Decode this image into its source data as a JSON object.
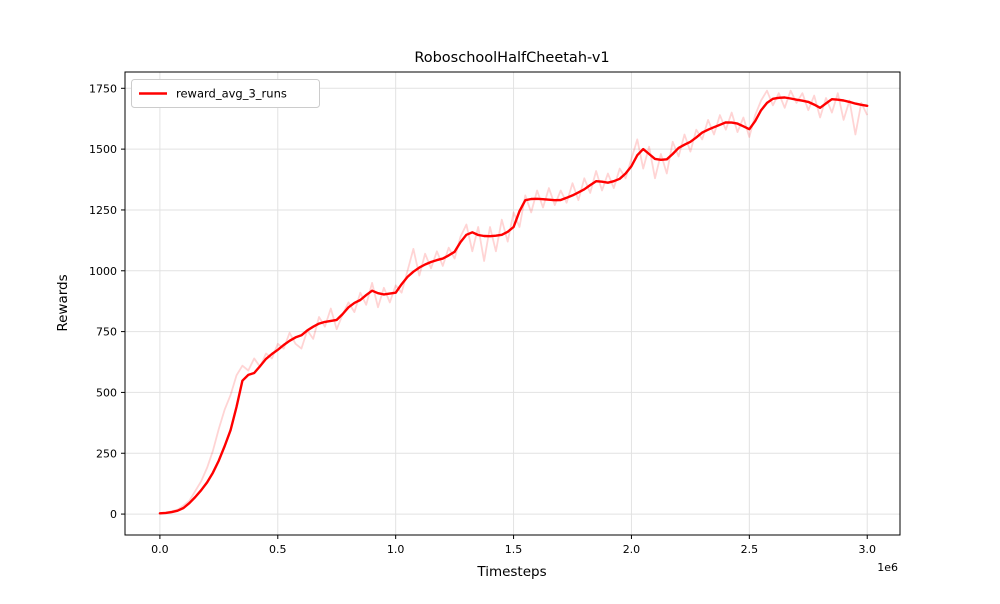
{
  "colors": {
    "line": "#ff0000",
    "raw_line": "#ff0000",
    "raw_line_opacity": 0.17,
    "grid": "#e2e2e2",
    "spine": "#000000",
    "background": "#ffffff",
    "legend_border": "#cccccc"
  },
  "legend": {
    "label": "reward_avg_3_runs"
  },
  "chart_data": {
    "type": "line",
    "title": "RoboschoolHalfCheetah-v1",
    "xlabel": "Timesteps",
    "ylabel": "Rewards",
    "x_offset_label": "1e6",
    "grid": true,
    "legend_position": "upper left",
    "xlim": [
      -148000,
      3139000
    ],
    "ylim": [
      -86,
      1817
    ],
    "x_ticks": [
      0,
      500000,
      1000000,
      1500000,
      2000000,
      2500000,
      3000000
    ],
    "x_tick_labels": [
      "0.0",
      "0.5",
      "1.0",
      "1.5",
      "2.0",
      "2.5",
      "3.0"
    ],
    "y_ticks": [
      0,
      250,
      500,
      750,
      1000,
      1250,
      1500,
      1750
    ],
    "y_tick_labels": [
      "0",
      "250",
      "500",
      "750",
      "1000",
      "1250",
      "1500",
      "1750"
    ],
    "x": [
      0,
      25000,
      50000,
      75000,
      100000,
      125000,
      150000,
      175000,
      200000,
      225000,
      250000,
      275000,
      300000,
      325000,
      350000,
      375000,
      400000,
      425000,
      450000,
      475000,
      500000,
      525000,
      550000,
      575000,
      600000,
      625000,
      650000,
      675000,
      700000,
      725000,
      750000,
      775000,
      800000,
      825000,
      850000,
      875000,
      900000,
      925000,
      950000,
      975000,
      1000000,
      1025000,
      1050000,
      1075000,
      1100000,
      1125000,
      1150000,
      1175000,
      1200000,
      1225000,
      1250000,
      1275000,
      1300000,
      1325000,
      1350000,
      1375000,
      1400000,
      1425000,
      1450000,
      1475000,
      1500000,
      1525000,
      1550000,
      1575000,
      1600000,
      1625000,
      1650000,
      1675000,
      1700000,
      1725000,
      1750000,
      1775000,
      1800000,
      1825000,
      1850000,
      1875000,
      1900000,
      1925000,
      1950000,
      1975000,
      2000000,
      2025000,
      2050000,
      2075000,
      2100000,
      2125000,
      2150000,
      2175000,
      2200000,
      2225000,
      2250000,
      2275000,
      2300000,
      2325000,
      2350000,
      2375000,
      2400000,
      2425000,
      2450000,
      2475000,
      2500000,
      2525000,
      2550000,
      2575000,
      2600000,
      2625000,
      2650000,
      2675000,
      2700000,
      2725000,
      2750000,
      2775000,
      2800000,
      2825000,
      2850000,
      2875000,
      2900000,
      2925000,
      2950000,
      2975000,
      3000000
    ],
    "series": [
      {
        "name": "reward_raw",
        "show_in_legend": false,
        "values": [
          2,
          6,
          12,
          18,
          35,
          55,
          95,
          135,
          190,
          260,
          350,
          430,
          490,
          570,
          610,
          590,
          640,
          605,
          660,
          640,
          700,
          680,
          745,
          700,
          680,
          755,
          720,
          810,
          770,
          845,
          760,
          820,
          870,
          830,
          910,
          860,
          950,
          850,
          930,
          870,
          940,
          910,
          1000,
          1090,
          980,
          1070,
          1010,
          1080,
          1020,
          1095,
          1050,
          1140,
          1190,
          1080,
          1180,
          1040,
          1180,
          1080,
          1210,
          1120,
          1240,
          1180,
          1310,
          1240,
          1330,
          1260,
          1340,
          1270,
          1330,
          1280,
          1360,
          1290,
          1380,
          1320,
          1410,
          1330,
          1400,
          1340,
          1420,
          1380,
          1460,
          1540,
          1420,
          1510,
          1380,
          1480,
          1400,
          1530,
          1470,
          1560,
          1490,
          1580,
          1540,
          1620,
          1560,
          1640,
          1580,
          1650,
          1570,
          1630,
          1550,
          1640,
          1700,
          1740,
          1680,
          1730,
          1670,
          1740,
          1690,
          1730,
          1660,
          1720,
          1630,
          1710,
          1650,
          1730,
          1620,
          1700,
          1560,
          1690,
          1640
        ]
      },
      {
        "name": "reward_avg_3_runs",
        "show_in_legend": true,
        "values": [
          3,
          5,
          8,
          14,
          25,
          45,
          70,
          98,
          130,
          170,
          220,
          280,
          345,
          440,
          548,
          572,
          580,
          608,
          638,
          658,
          675,
          695,
          712,
          726,
          735,
          755,
          770,
          783,
          790,
          794,
          798,
          822,
          850,
          868,
          880,
          900,
          918,
          908,
          903,
          906,
          910,
          945,
          975,
          996,
          1013,
          1026,
          1036,
          1044,
          1050,
          1063,
          1078,
          1118,
          1148,
          1158,
          1147,
          1143,
          1142,
          1144,
          1148,
          1160,
          1180,
          1245,
          1290,
          1295,
          1296,
          1294,
          1292,
          1290,
          1291,
          1300,
          1310,
          1322,
          1335,
          1352,
          1368,
          1366,
          1362,
          1368,
          1378,
          1400,
          1430,
          1475,
          1500,
          1480,
          1460,
          1456,
          1458,
          1480,
          1505,
          1518,
          1530,
          1548,
          1568,
          1580,
          1590,
          1600,
          1610,
          1609,
          1605,
          1594,
          1582,
          1615,
          1660,
          1690,
          1707,
          1711,
          1712,
          1708,
          1703,
          1699,
          1694,
          1683,
          1670,
          1688,
          1705,
          1703,
          1700,
          1694,
          1687,
          1682,
          1678
        ]
      }
    ]
  }
}
